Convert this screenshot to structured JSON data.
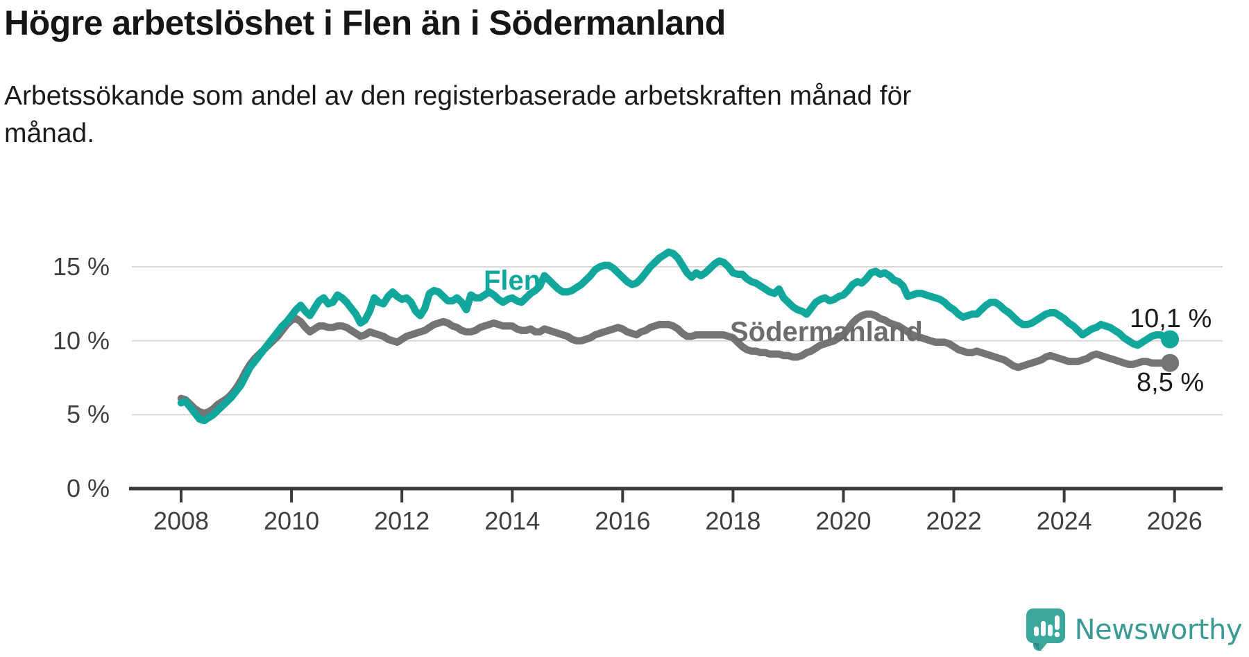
{
  "title": "Högre arbetslöshet i Flen än i Södermanland",
  "subtitle": "Arbetssökande som andel av den registerbaserade arbetskraften månad för\nmånad.",
  "logo": {
    "text": "Newsworthy"
  },
  "chart_data": {
    "type": "line",
    "title": "Högre arbetslöshet i Flen än i Södermanland",
    "xlabel": "",
    "ylabel": "",
    "x_unit": "month",
    "x_start": "2008-01",
    "x_end": "2025-12",
    "x_ticks": [
      2008,
      2010,
      2012,
      2014,
      2016,
      2018,
      2020,
      2022,
      2024,
      2026
    ],
    "x_tick_labels": [
      "2008",
      "2010",
      "2012",
      "2014",
      "2016",
      "2018",
      "2020",
      "2022",
      "2024",
      "2026"
    ],
    "y_ticks": [
      0,
      5,
      10,
      15
    ],
    "y_tick_labels": [
      "0 %",
      "5 %",
      "10 %",
      "15 %"
    ],
    "ylim": [
      0,
      16.6
    ],
    "grid": "horizontal",
    "legend": "inline-labels",
    "series": [
      {
        "name": "Flen",
        "color": "#12a79c",
        "label_color": "#12a79c",
        "end_label": "10,1 %",
        "end_value": 10.1,
        "values": [
          5.8,
          5.9,
          5.5,
          5.1,
          4.7,
          4.6,
          4.8,
          5.0,
          5.3,
          5.6,
          5.9,
          6.2,
          6.6,
          7.0,
          7.6,
          8.2,
          8.6,
          9.0,
          9.4,
          9.8,
          10.2,
          10.6,
          11.0,
          11.3,
          11.7,
          12.1,
          12.4,
          12.0,
          11.7,
          12.2,
          12.7,
          12.9,
          12.5,
          12.6,
          13.1,
          12.9,
          12.6,
          12.2,
          11.8,
          11.2,
          11.4,
          12.0,
          12.9,
          12.6,
          12.5,
          13.0,
          13.3,
          13.0,
          12.8,
          12.9,
          12.6,
          12.0,
          11.7,
          12.2,
          13.2,
          13.4,
          13.3,
          13.0,
          12.7,
          12.7,
          12.9,
          12.6,
          12.1,
          13.1,
          12.9,
          12.9,
          13.1,
          13.3,
          13.1,
          12.8,
          12.6,
          12.8,
          12.9,
          12.7,
          12.6,
          12.9,
          13.2,
          13.4,
          13.7,
          14.4,
          14.1,
          13.8,
          13.5,
          13.3,
          13.3,
          13.4,
          13.6,
          13.8,
          14.1,
          14.4,
          14.8,
          15.0,
          15.1,
          15.1,
          14.9,
          14.6,
          14.3,
          14.0,
          13.8,
          13.9,
          14.2,
          14.6,
          15.0,
          15.3,
          15.6,
          15.8,
          16.0,
          15.9,
          15.6,
          15.1,
          14.6,
          14.3,
          14.6,
          14.4,
          14.6,
          14.9,
          15.2,
          15.4,
          15.3,
          15.0,
          14.6,
          14.5,
          14.5,
          14.2,
          14.0,
          13.9,
          13.7,
          13.5,
          13.3,
          13.2,
          13.5,
          12.9,
          12.6,
          12.3,
          12.1,
          12.0,
          11.8,
          12.2,
          12.6,
          12.8,
          12.9,
          12.7,
          12.8,
          13.0,
          13.1,
          13.4,
          13.8,
          14.0,
          13.9,
          14.2,
          14.6,
          14.7,
          14.5,
          14.6,
          14.4,
          14.1,
          14.0,
          13.7,
          13.0,
          13.1,
          13.2,
          13.2,
          13.1,
          13.0,
          12.9,
          12.8,
          12.6,
          12.3,
          12.1,
          11.8,
          11.6,
          11.7,
          11.8,
          11.8,
          12.1,
          12.4,
          12.6,
          12.6,
          12.4,
          12.1,
          11.9,
          11.6,
          11.3,
          11.1,
          11.1,
          11.2,
          11.4,
          11.6,
          11.8,
          11.9,
          11.9,
          11.7,
          11.5,
          11.2,
          11.0,
          10.7,
          10.4,
          10.6,
          10.8,
          10.9,
          11.1,
          11.0,
          10.9,
          10.7,
          10.5,
          10.2,
          10.0,
          9.8,
          9.7,
          9.9,
          10.1,
          10.3,
          10.4,
          10.4,
          10.2,
          10.1
        ]
      },
      {
        "name": "Södermanland",
        "color": "#757474",
        "label_color": "#6c6c6c",
        "end_label": "8,5 %",
        "end_value": 8.5,
        "values": [
          6.1,
          6.0,
          5.7,
          5.4,
          5.2,
          5.1,
          5.2,
          5.4,
          5.7,
          5.9,
          6.1,
          6.4,
          6.8,
          7.3,
          7.9,
          8.4,
          8.8,
          9.1,
          9.4,
          9.7,
          10.0,
          10.3,
          10.7,
          11.1,
          11.4,
          11.5,
          11.3,
          10.9,
          10.6,
          10.8,
          11.0,
          11.0,
          10.9,
          10.9,
          11.0,
          11.0,
          10.9,
          10.7,
          10.5,
          10.3,
          10.4,
          10.6,
          10.5,
          10.4,
          10.3,
          10.1,
          10.0,
          9.9,
          10.1,
          10.3,
          10.4,
          10.5,
          10.6,
          10.7,
          10.9,
          11.1,
          11.2,
          11.3,
          11.2,
          11.0,
          10.9,
          10.7,
          10.6,
          10.6,
          10.7,
          10.9,
          11.0,
          11.1,
          11.2,
          11.1,
          11.0,
          11.0,
          11.0,
          10.8,
          10.7,
          10.7,
          10.8,
          10.6,
          10.6,
          10.8,
          10.7,
          10.6,
          10.5,
          10.4,
          10.3,
          10.1,
          10.0,
          10.0,
          10.1,
          10.2,
          10.4,
          10.5,
          10.6,
          10.7,
          10.8,
          10.9,
          10.8,
          10.6,
          10.5,
          10.4,
          10.6,
          10.7,
          10.9,
          11.0,
          11.1,
          11.1,
          11.1,
          11.0,
          10.8,
          10.5,
          10.3,
          10.3,
          10.4,
          10.4,
          10.4,
          10.4,
          10.4,
          10.4,
          10.4,
          10.3,
          10.2,
          9.9,
          9.6,
          9.4,
          9.3,
          9.3,
          9.2,
          9.2,
          9.1,
          9.1,
          9.1,
          9.0,
          9.0,
          8.9,
          8.9,
          9.0,
          9.2,
          9.3,
          9.5,
          9.7,
          9.8,
          9.9,
          10.0,
          10.2,
          10.4,
          10.8,
          11.2,
          11.5,
          11.7,
          11.8,
          11.8,
          11.7,
          11.5,
          11.4,
          11.2,
          11.1,
          11.0,
          10.8,
          10.6,
          10.4,
          10.3,
          10.2,
          10.1,
          10.0,
          9.9,
          9.9,
          9.9,
          9.8,
          9.6,
          9.4,
          9.3,
          9.2,
          9.2,
          9.3,
          9.2,
          9.1,
          9.0,
          8.9,
          8.8,
          8.7,
          8.5,
          8.3,
          8.2,
          8.3,
          8.4,
          8.5,
          8.6,
          8.7,
          8.9,
          9.0,
          8.9,
          8.8,
          8.7,
          8.6,
          8.6,
          8.6,
          8.7,
          8.8,
          9.0,
          9.1,
          9.0,
          8.9,
          8.8,
          8.7,
          8.6,
          8.5,
          8.4,
          8.4,
          8.5,
          8.6,
          8.6,
          8.5,
          8.5,
          8.5,
          8.5,
          8.5
        ]
      }
    ],
    "colors": {
      "grid": "#d9d9d9",
      "axis": "#3b3b3b",
      "tick_text": "#3f3f3e",
      "title_text": "#161615"
    }
  }
}
